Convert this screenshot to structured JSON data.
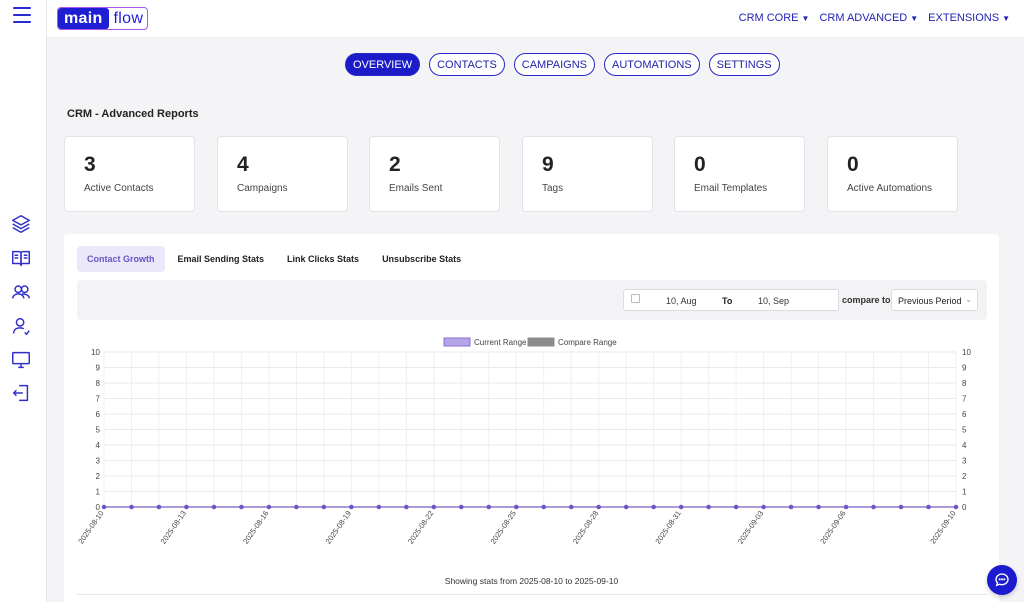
{
  "app": {
    "logo_part1": "main",
    "logo_part2": "flow"
  },
  "topnav": [
    {
      "label": "CRM CORE"
    },
    {
      "label": "CRM ADVANCED"
    },
    {
      "label": "EXTENSIONS"
    }
  ],
  "tabs": [
    {
      "label": "OVERVIEW",
      "active": true
    },
    {
      "label": "CONTACTS"
    },
    {
      "label": "CAMPAIGNS"
    },
    {
      "label": "AUTOMATIONS"
    },
    {
      "label": "SETTINGS"
    }
  ],
  "page_title": "CRM - Advanced Reports",
  "stats": [
    {
      "value": "3",
      "label": "Active Contacts"
    },
    {
      "value": "4",
      "label": "Campaigns"
    },
    {
      "value": "2",
      "label": "Emails Sent"
    },
    {
      "value": "9",
      "label": "Tags"
    },
    {
      "value": "0",
      "label": "Email Templates"
    },
    {
      "value": "0",
      "label": "Active Automations"
    }
  ],
  "report_tabs": [
    {
      "label": "Contact Growth",
      "active": true
    },
    {
      "label": "Email Sending Stats"
    },
    {
      "label": "Link Clicks Stats"
    },
    {
      "label": "Unsubscribe Stats"
    }
  ],
  "filters": {
    "date_from": "10, Aug",
    "to_label": "To",
    "date_to": "10, Sep",
    "compare_label": "compare to",
    "compare_value": "Previous Period"
  },
  "chart_data": {
    "type": "line",
    "legend_position": "top-center",
    "grid": true,
    "ylim": [
      0,
      10
    ],
    "yticks": [
      "0",
      "1",
      "2",
      "3",
      "4",
      "5",
      "6",
      "7",
      "8",
      "9",
      "10"
    ],
    "x": [
      "2025-08-10",
      "2025-08-11",
      "2025-08-12",
      "2025-08-13",
      "2025-08-14",
      "2025-08-15",
      "2025-08-16",
      "2025-08-17",
      "2025-08-18",
      "2025-08-19",
      "2025-08-20",
      "2025-08-21",
      "2025-08-22",
      "2025-08-23",
      "2025-08-24",
      "2025-08-25",
      "2025-08-26",
      "2025-08-27",
      "2025-08-28",
      "2025-08-29",
      "2025-08-30",
      "2025-08-31",
      "2025-09-01",
      "2025-09-02",
      "2025-09-03",
      "2025-09-04",
      "2025-09-05",
      "2025-09-06",
      "2025-09-07",
      "2025-09-08",
      "2025-09-09",
      "2025-09-10"
    ],
    "xtick_labels": [
      "2025-08-10",
      "2025-08-13",
      "2025-08-16",
      "2025-08-19",
      "2025-08-22",
      "2025-08-25",
      "2025-08-28",
      "2025-08-31",
      "2025-09-03",
      "2025-09-06",
      "2025-09-10"
    ],
    "series": [
      {
        "name": "Current Range",
        "color": "#8a6fd6",
        "values": [
          0,
          0,
          0,
          0,
          0,
          0,
          0,
          0,
          0,
          0,
          0,
          0,
          0,
          0,
          0,
          0,
          0,
          0,
          0,
          0,
          0,
          0,
          0,
          0,
          0,
          0,
          0,
          0,
          0,
          0,
          0,
          0
        ]
      },
      {
        "name": "Compare Range",
        "color": "#8c8c8c",
        "values": [
          0,
          0,
          0,
          0,
          0,
          0,
          0,
          0,
          0,
          0,
          0,
          0,
          0,
          0,
          0,
          0,
          0,
          0,
          0,
          0,
          0,
          0,
          0,
          0,
          0,
          0,
          0,
          0,
          0,
          0,
          0,
          0
        ]
      }
    ]
  },
  "footer_note": "Showing stats from 2025-08-10 to 2025-09-10",
  "icons": {
    "menu": "hamburger-icon",
    "rail": [
      "layers-icon",
      "book-icon",
      "users-icon",
      "user-icon",
      "monitor-icon",
      "logout-icon"
    ],
    "chat": "chat-bubble-icon"
  },
  "colors": {
    "accent": "#1b1bc8",
    "series_current": "#8a6fd6",
    "series_compare": "#8c8c8c"
  }
}
